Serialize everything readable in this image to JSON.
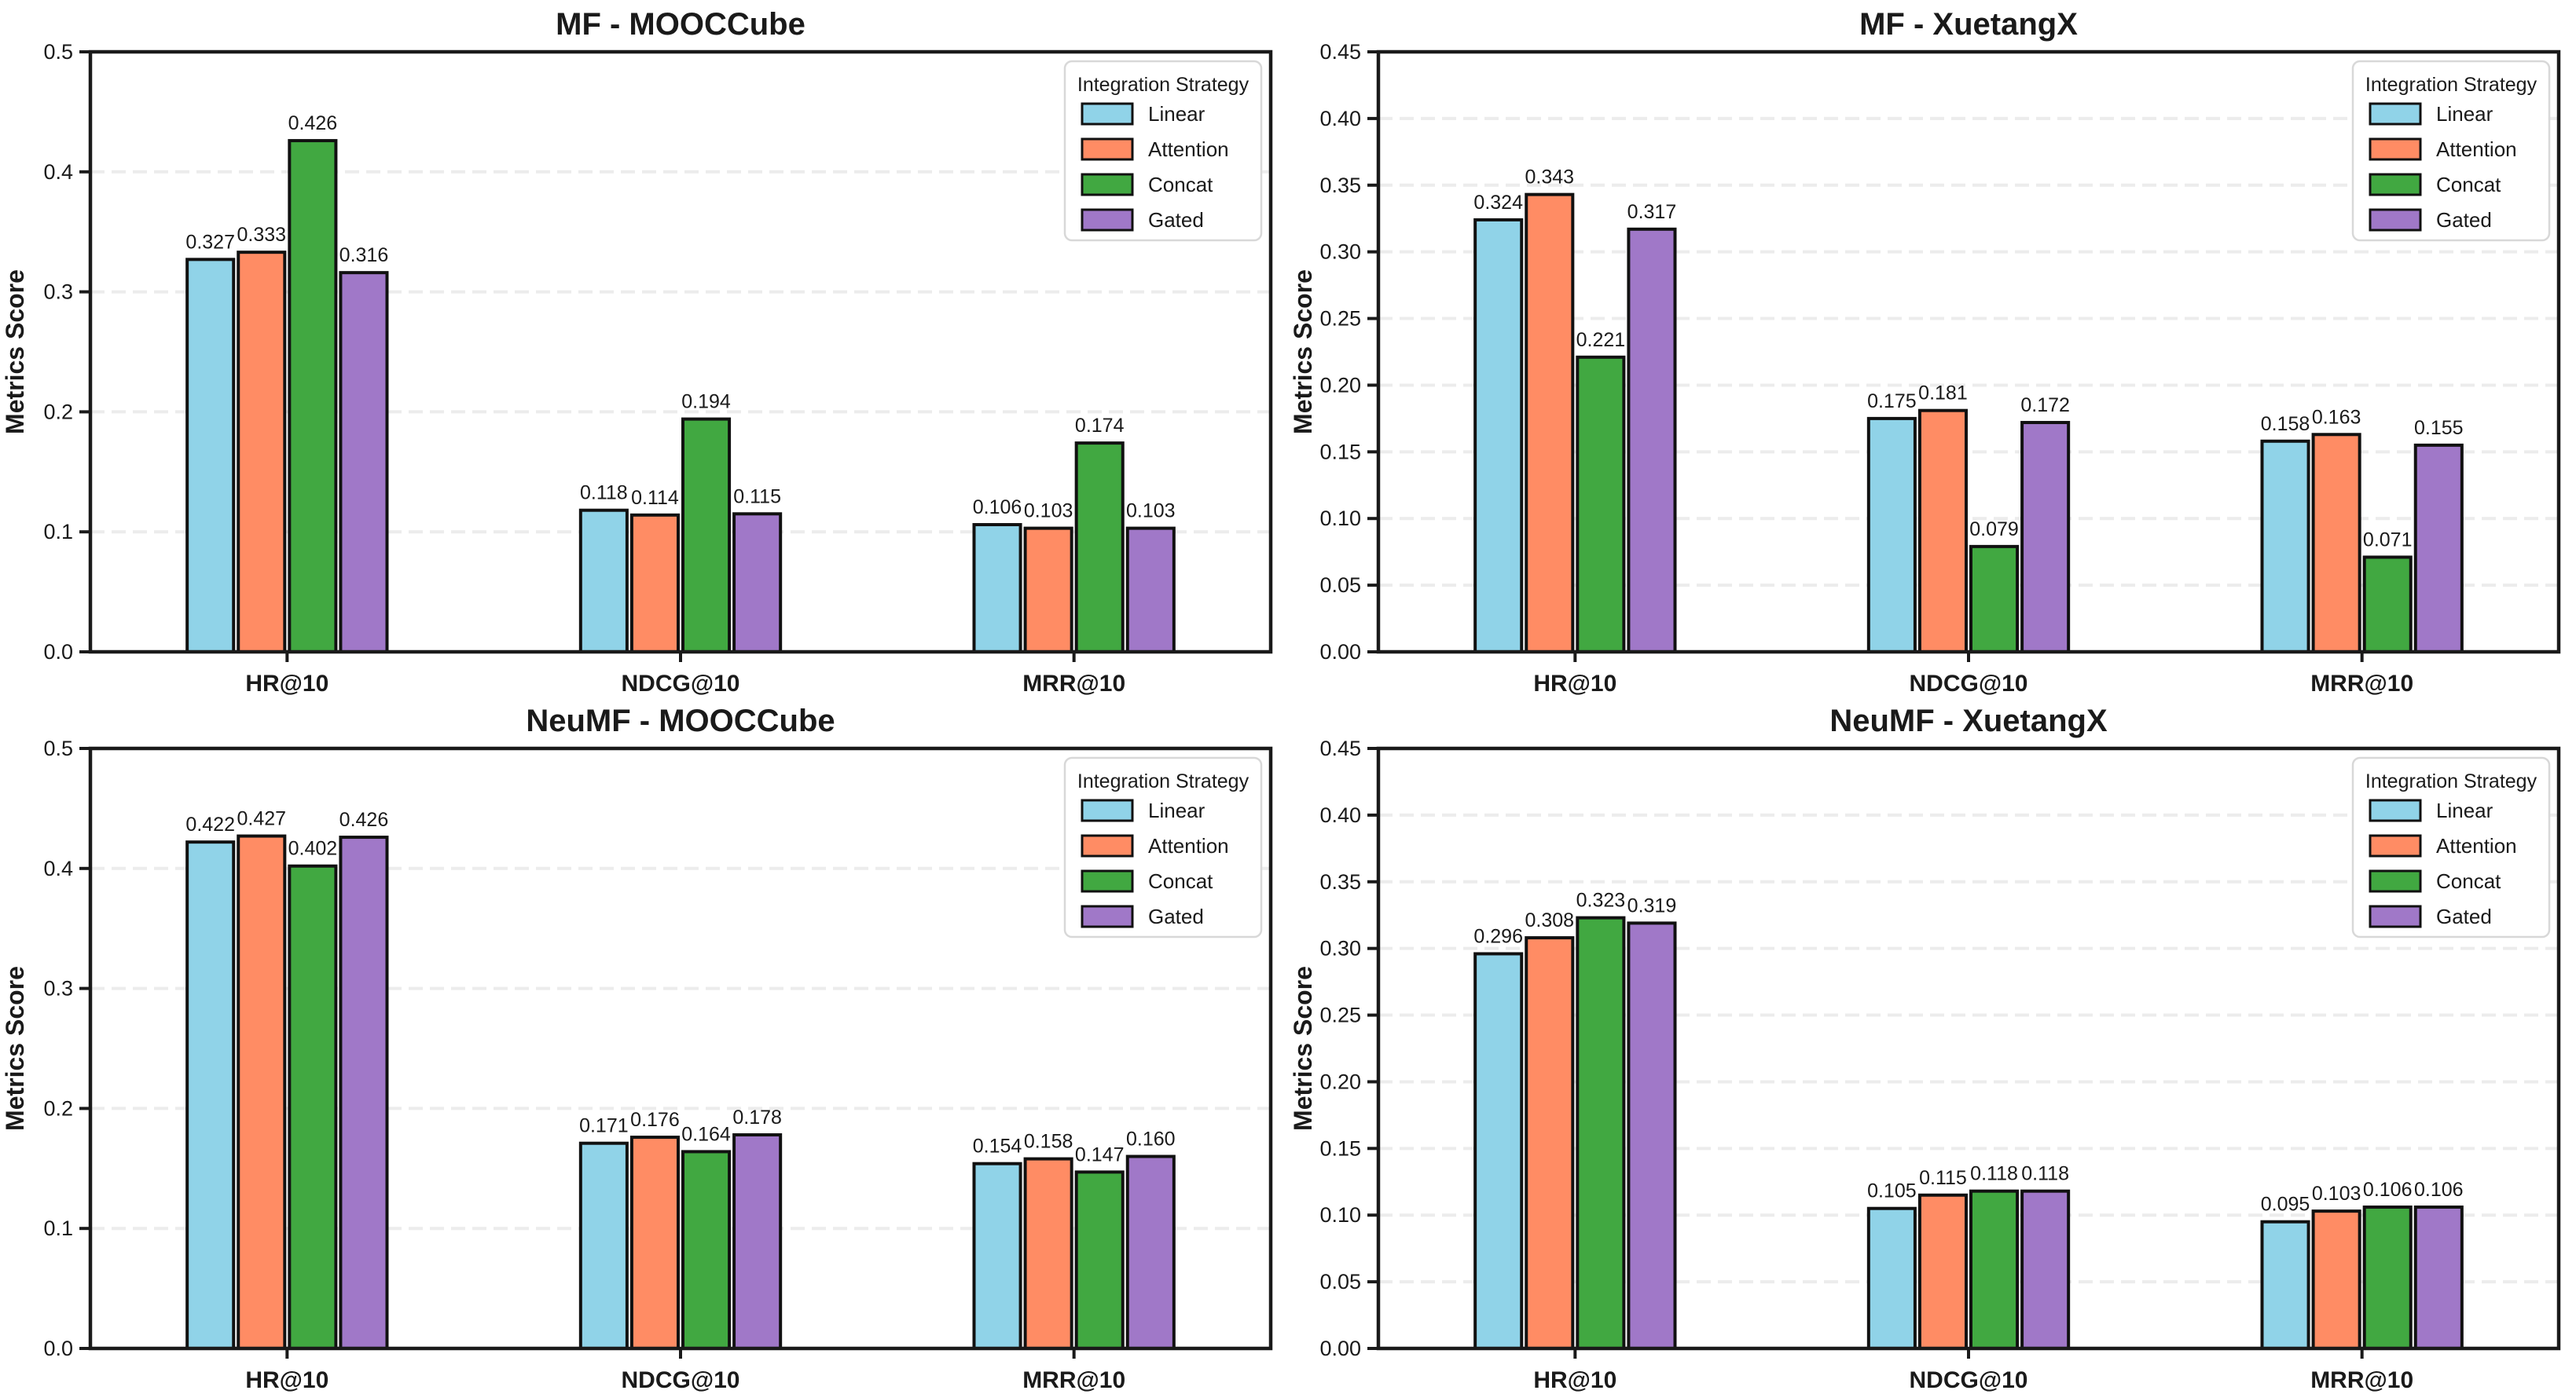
{
  "figure": {
    "ylabel": "Metrics Score",
    "categories": [
      "HR@10",
      "NDCG@10",
      "MRR@10"
    ],
    "legend": {
      "title": "Integration Strategy",
      "entries": [
        "Linear",
        "Attention",
        "Concat",
        "Gated"
      ]
    },
    "colors": {
      "Linear": "#90D3E8",
      "Attention": "#FF8C64",
      "Concat": "#41A841",
      "Gated": "#A078C8",
      "bar_edge": "#111111",
      "spine": "#1a1a1a",
      "grid": "#ececec",
      "legend_border": "#d8d8d8",
      "background": "#ffffff"
    },
    "value_label_decimals": 3
  },
  "chart_data": [
    {
      "id": "mf-mooccube",
      "type": "bar",
      "title": "MF - MOOCCube",
      "xlabel": "",
      "ylabel": "Metrics Score",
      "categories": [
        "HR@10",
        "NDCG@10",
        "MRR@10"
      ],
      "series": [
        {
          "name": "Linear",
          "values": [
            0.327,
            0.118,
            0.106
          ]
        },
        {
          "name": "Attention",
          "values": [
            0.333,
            0.114,
            0.103
          ]
        },
        {
          "name": "Concat",
          "values": [
            0.426,
            0.194,
            0.174
          ]
        },
        {
          "name": "Gated",
          "values": [
            0.316,
            0.115,
            0.103
          ]
        }
      ],
      "ylim": [
        0,
        0.5
      ],
      "ytick_step": 0.1,
      "ytick_decimals": 1,
      "grid": true,
      "legend_position": "upper right"
    },
    {
      "id": "mf-xuetangx",
      "type": "bar",
      "title": "MF - XuetangX",
      "xlabel": "",
      "ylabel": "Metrics Score",
      "categories": [
        "HR@10",
        "NDCG@10",
        "MRR@10"
      ],
      "series": [
        {
          "name": "Linear",
          "values": [
            0.324,
            0.175,
            0.158
          ]
        },
        {
          "name": "Attention",
          "values": [
            0.343,
            0.181,
            0.163
          ]
        },
        {
          "name": "Concat",
          "values": [
            0.221,
            0.079,
            0.071
          ]
        },
        {
          "name": "Gated",
          "values": [
            0.317,
            0.172,
            0.155
          ]
        }
      ],
      "ylim": [
        0,
        0.45
      ],
      "ytick_step": 0.05,
      "ytick_decimals": 2,
      "grid": true,
      "legend_position": "upper right"
    },
    {
      "id": "neumf-mooccube",
      "type": "bar",
      "title": "NeuMF - MOOCCube",
      "xlabel": "",
      "ylabel": "Metrics Score",
      "categories": [
        "HR@10",
        "NDCG@10",
        "MRR@10"
      ],
      "series": [
        {
          "name": "Linear",
          "values": [
            0.422,
            0.171,
            0.154
          ]
        },
        {
          "name": "Attention",
          "values": [
            0.427,
            0.176,
            0.158
          ]
        },
        {
          "name": "Concat",
          "values": [
            0.402,
            0.164,
            0.147
          ]
        },
        {
          "name": "Gated",
          "values": [
            0.426,
            0.178,
            0.16
          ]
        }
      ],
      "ylim": [
        0,
        0.5
      ],
      "ytick_step": 0.1,
      "ytick_decimals": 1,
      "grid": true,
      "legend_position": "upper right"
    },
    {
      "id": "neumf-xuetangx",
      "type": "bar",
      "title": "NeuMF - XuetangX",
      "xlabel": "",
      "ylabel": "Metrics Score",
      "categories": [
        "HR@10",
        "NDCG@10",
        "MRR@10"
      ],
      "series": [
        {
          "name": "Linear",
          "values": [
            0.296,
            0.105,
            0.095
          ]
        },
        {
          "name": "Attention",
          "values": [
            0.308,
            0.115,
            0.103
          ]
        },
        {
          "name": "Concat",
          "values": [
            0.323,
            0.118,
            0.106
          ]
        },
        {
          "name": "Gated",
          "values": [
            0.319,
            0.118,
            0.106
          ]
        }
      ],
      "ylim": [
        0,
        0.45
      ],
      "ytick_step": 0.05,
      "ytick_decimals": 2,
      "grid": true,
      "legend_position": "upper right"
    }
  ]
}
